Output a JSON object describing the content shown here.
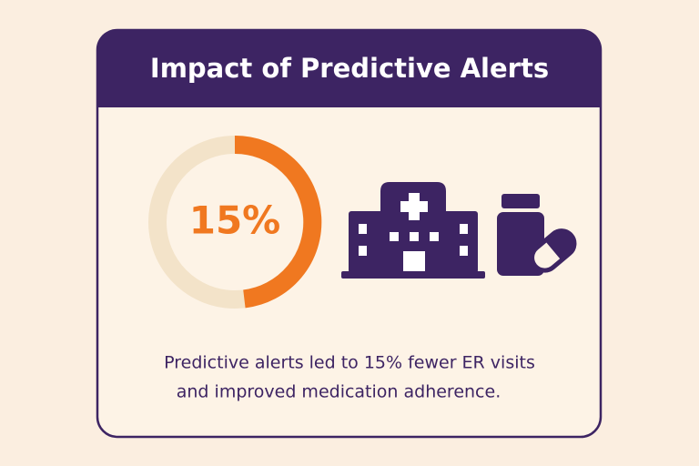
{
  "header": {
    "title": "Impact of Predictive Alerts"
  },
  "stat": {
    "label": "15%"
  },
  "caption": {
    "lines": [
      "Predictive alerts led to 15% fewer ER visits",
      "and improved medication adherence."
    ]
  }
}
